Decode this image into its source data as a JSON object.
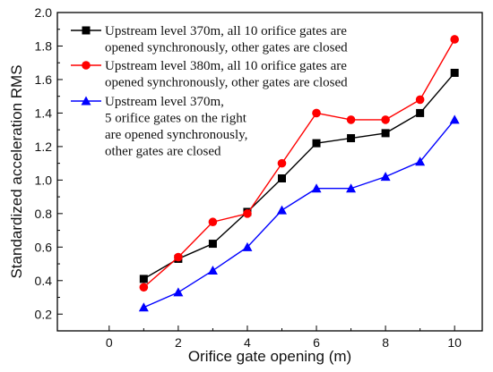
{
  "chart_data": {
    "type": "line",
    "xlabel": "Orifice gate opening (m)",
    "ylabel": "Standardized acceleration RMS",
    "xlim": [
      -1.5,
      10.8
    ],
    "ylim": [
      0.1,
      2.0
    ],
    "x_ticks": [
      0,
      2,
      4,
      6,
      8,
      10
    ],
    "y_ticks": [
      0.2,
      0.4,
      0.6,
      0.8,
      1.0,
      1.2,
      1.4,
      1.6,
      1.8,
      2.0
    ],
    "x_tick_labels": [
      "0",
      "2",
      "4",
      "6",
      "8",
      "10"
    ],
    "y_tick_labels": [
      "0.2",
      "0.4",
      "0.6",
      "0.8",
      "1.0",
      "1.2",
      "1.4",
      "1.6",
      "1.8",
      "2.0"
    ],
    "grid": false,
    "legend_position": "top-left",
    "x": [
      1,
      2,
      3,
      4,
      5,
      6,
      7,
      8,
      9,
      10
    ],
    "series": [
      {
        "legend_lines": [
          "Upstream level 370m, all 10 orifice gates are",
          "opened synchronously, other gates are closed"
        ],
        "color": "#000000",
        "marker": "square",
        "values": [
          0.41,
          0.53,
          0.62,
          0.81,
          1.01,
          1.22,
          1.25,
          1.28,
          1.4,
          1.64
        ]
      },
      {
        "legend_lines": [
          "Upstream level 380m, all 10 orifice gates are",
          "opened synchronously, other gates are closed"
        ],
        "color": "#ff0000",
        "marker": "circle",
        "values": [
          0.36,
          0.54,
          0.75,
          0.8,
          1.1,
          1.4,
          1.36,
          1.36,
          1.48,
          1.84
        ]
      },
      {
        "legend_lines": [
          "Upstream level 370m,",
          "5 orifice gates on the right",
          "are opened synchronously,",
          "other gates are closed"
        ],
        "color": "#0000ff",
        "marker": "triangle",
        "values": [
          0.24,
          0.33,
          0.46,
          0.6,
          0.82,
          0.95,
          0.95,
          1.02,
          1.11,
          1.36
        ]
      }
    ]
  }
}
